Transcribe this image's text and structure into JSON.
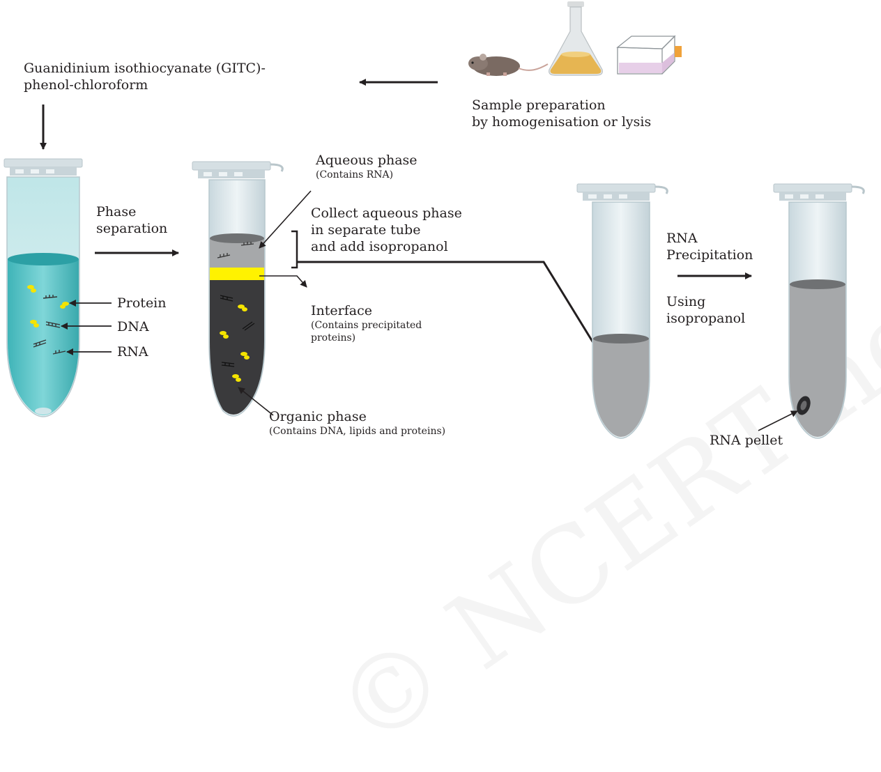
{
  "colors": {
    "aqueous_gray": "#a6a8aa",
    "interface_yellow": "#fff200",
    "organic_dark": "#3a3a3c",
    "teal_liquid": "#4cc3c6",
    "tube_glass": "#dbe6ea",
    "arrow": "#231f20"
  },
  "labels": {
    "reagent_line1": "Guanidinium isothiocyanate (GITC)-",
    "reagent_line2": "phenol-chloroform",
    "sample_line1": "Sample preparation",
    "sample_line2": "by homogenisation or lysis",
    "phase_line1": "Phase",
    "phase_line2": "separation",
    "protein": "Protein",
    "dna": "DNA",
    "rna": "RNA",
    "aqueous_title": "Aqueous phase",
    "aqueous_sub": "(Contains RNA)",
    "collect_line1": "Collect aqueous phase",
    "collect_line2": "in separate tube",
    "collect_line3": "and add isopropanol",
    "interface_title": "Interface",
    "interface_sub1": "(Contains precipitated",
    "interface_sub2": "proteins)",
    "organic_title": "Organic phase",
    "organic_sub": "(Contains DNA, lipids and proteins)",
    "rna_precip_line1": "RNA",
    "rna_precip_line2": "Precipitation",
    "using_line1": "Using",
    "using_line2": "isopropanol",
    "pellet": "RNA pellet"
  },
  "icons": [
    "mouse-icon",
    "erlenmeyer-flask-icon",
    "culture-flask-icon"
  ],
  "watermark": "© NCERT not to be republished"
}
